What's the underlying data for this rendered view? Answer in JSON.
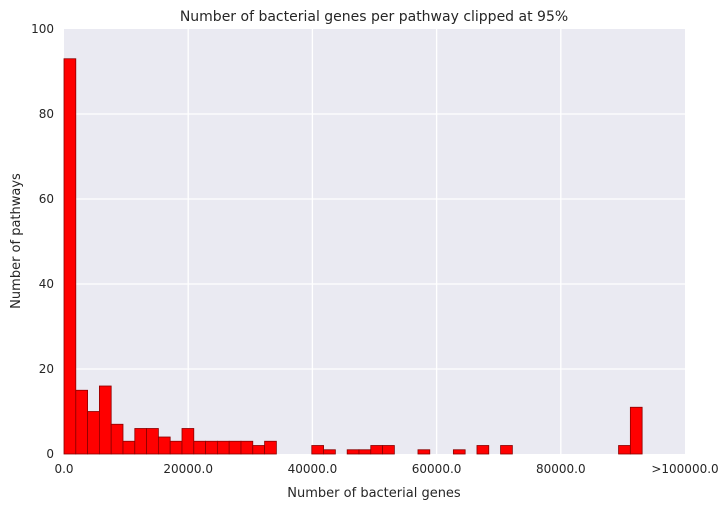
{
  "chart_data": {
    "type": "bar",
    "title": "Number of bacterial genes per pathway clipped at 95%",
    "xlabel": "Number of bacterial genes",
    "ylabel": "Number of pathways",
    "xlim": [
      0,
      100000
    ],
    "ylim": [
      0,
      100
    ],
    "grid": true,
    "bin_width": 1900,
    "x_tick_labels": [
      "0.0",
      "20000.0",
      "40000.0",
      "60000.0",
      "80000.0",
      ">100000.0"
    ],
    "y_tick_labels": [
      "0",
      "20",
      "40",
      "60",
      "80",
      "100"
    ],
    "bar_color": "#ff0000",
    "bar_edge_color": "#8b0000",
    "background_color": "#eaeaf2",
    "bins_start": [
      0,
      1900,
      3800,
      5700,
      7600,
      9500,
      11400,
      13300,
      15200,
      17100,
      19000,
      20900,
      22800,
      24700,
      26600,
      28500,
      30400,
      32300,
      39900,
      41800,
      45600,
      47500,
      49400,
      51300,
      57000,
      62700,
      66500,
      70300,
      89300,
      91200
    ],
    "values": [
      93,
      15,
      10,
      16,
      7,
      3,
      6,
      6,
      4,
      3,
      6,
      3,
      3,
      3,
      3,
      3,
      2,
      3,
      2,
      1,
      1,
      1,
      2,
      2,
      1,
      1,
      2,
      2,
      2,
      11
    ]
  }
}
